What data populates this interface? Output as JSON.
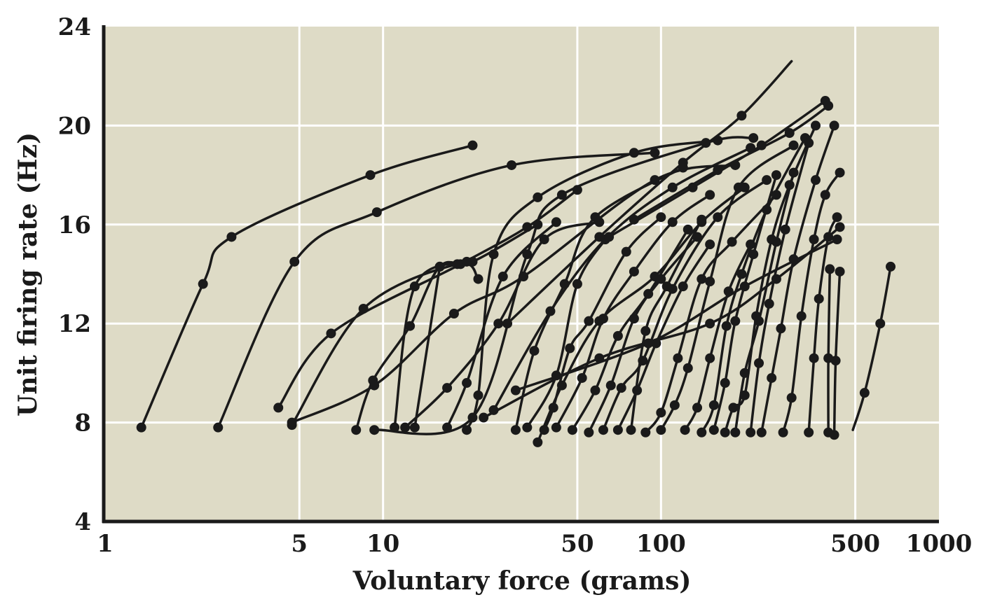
{
  "chart_data": {
    "type": "line",
    "title": "",
    "xlabel": "Voluntary force (grams)",
    "ylabel": "Unit firing rate (Hz)",
    "x_scale": "log",
    "xlim": [
      1,
      1000
    ],
    "ylim": [
      4,
      24
    ],
    "x_ticks": [
      "1",
      "5",
      "10",
      "50",
      "100",
      "500",
      "1000"
    ],
    "y_ticks": [
      "4",
      "8",
      "12",
      "16",
      "20",
      "24"
    ],
    "grid": true,
    "colors": {
      "background": "#dedbc6",
      "grid": "#ffffff",
      "line": "#1a1a1a"
    },
    "series": [
      {
        "points": [
          [
            1.35,
            7.8
          ],
          [
            2.25,
            13.6
          ],
          [
            2.85,
            15.5
          ],
          [
            9,
            18
          ],
          [
            21,
            19.2
          ]
        ]
      },
      {
        "points": [
          [
            2.55,
            7.8
          ],
          [
            4.8,
            14.5
          ],
          [
            9.5,
            16.5
          ],
          [
            29,
            18.4
          ],
          [
            95,
            18.9
          ]
        ]
      },
      {
        "points": [
          [
            4.7,
            7.9
          ],
          [
            8.5,
            12.6
          ],
          [
            18.5,
            14.4
          ],
          [
            22,
            13.8
          ]
        ]
      },
      {
        "points": [
          [
            4.2,
            8.6
          ],
          [
            6.5,
            11.6
          ],
          [
            19,
            14.4
          ],
          [
            33,
            15.9
          ],
          [
            50,
            17.4
          ]
        ]
      },
      {
        "points": [
          [
            4.7,
            8.0
          ],
          [
            9.3,
            9.5
          ],
          [
            18,
            12.4
          ],
          [
            32,
            13.9
          ],
          [
            95,
            17.8
          ],
          [
            185,
            18.4
          ]
        ]
      },
      {
        "points": [
          [
            8,
            7.7
          ],
          [
            9.2,
            9.7
          ],
          [
            12.5,
            11.9
          ],
          [
            16,
            14.3
          ],
          [
            21,
            14.5
          ],
          [
            36,
            16
          ]
        ]
      },
      {
        "points": [
          [
            9.3,
            7.7
          ],
          [
            21,
            8.2
          ],
          [
            33,
            14.8
          ],
          [
            44,
            17.2
          ],
          [
            145,
            19.3
          ],
          [
            215,
            19.5
          ]
        ]
      },
      {
        "points": [
          [
            11,
            7.8
          ],
          [
            13,
            13.5
          ],
          [
            20,
            14.5
          ]
        ]
      },
      {
        "points": [
          [
            12,
            7.8
          ],
          [
            17,
            9.4
          ],
          [
            26,
            12
          ],
          [
            38,
            15.4
          ],
          [
            60,
            16.1
          ]
        ]
      },
      {
        "points": [
          [
            13,
            7.8
          ],
          [
            16,
            14.3
          ]
        ]
      },
      {
        "points": [
          [
            17,
            7.8
          ],
          [
            20,
            9.6
          ],
          [
            27,
            13.9
          ],
          [
            42,
            16.1
          ]
        ]
      },
      {
        "points": [
          [
            20,
            7.7
          ],
          [
            22,
            9.1
          ],
          [
            25,
            14.8
          ],
          [
            36,
            17.1
          ],
          [
            80,
            18.9
          ],
          [
            160,
            19.4
          ]
        ]
      },
      {
        "points": [
          [
            25,
            8.5
          ],
          [
            40,
            12.5
          ],
          [
            63,
            15.4
          ],
          [
            110,
            17.5
          ],
          [
            210,
            19.1
          ]
        ]
      },
      {
        "points": [
          [
            30,
            7.7
          ],
          [
            35,
            10.9
          ],
          [
            45,
            13.6
          ],
          [
            58,
            16.3
          ],
          [
            120,
            18.3
          ]
        ]
      },
      {
        "points": [
          [
            33,
            7.8
          ],
          [
            42,
            9.9
          ],
          [
            50,
            13.6
          ],
          [
            63,
            15.4
          ]
        ]
      },
      {
        "points": [
          [
            38,
            7.7
          ],
          [
            41,
            8.6
          ],
          [
            47,
            11.0
          ],
          [
            55,
            12.1
          ],
          [
            75,
            14.9
          ],
          [
            100,
            16.3
          ]
        ]
      },
      {
        "points": [
          [
            36,
            7.2
          ],
          [
            44,
            9.5
          ],
          [
            60,
            12.1
          ],
          [
            95,
            13.9
          ],
          [
            140,
            16.1
          ],
          [
            200,
            17.5
          ]
        ]
      },
      {
        "points": [
          [
            42,
            7.8
          ],
          [
            52,
            9.8
          ],
          [
            62,
            12.2
          ],
          [
            80,
            14.1
          ],
          [
            110,
            16.1
          ],
          [
            150,
            17.2
          ]
        ]
      },
      {
        "points": [
          [
            48,
            7.7
          ],
          [
            58,
            9.3
          ],
          [
            70,
            11.5
          ],
          [
            90,
            13.2
          ],
          [
            125,
            15.8
          ]
        ]
      },
      {
        "points": [
          [
            55,
            7.6
          ],
          [
            66,
            9.5
          ],
          [
            80,
            12.2
          ],
          [
            100,
            13.8
          ],
          [
            135,
            15.5
          ]
        ]
      },
      {
        "points": [
          [
            62,
            7.7
          ],
          [
            72,
            9.4
          ],
          [
            86,
            10.5
          ],
          [
            110,
            13.4
          ],
          [
            160,
            16.3
          ],
          [
            240,
            17.8
          ]
        ]
      },
      {
        "points": [
          [
            70,
            7.7
          ],
          [
            82,
            9.3
          ],
          [
            96,
            11.2
          ],
          [
            120,
            13.5
          ],
          [
            150,
            15.2
          ]
        ]
      },
      {
        "points": [
          [
            78,
            7.7
          ],
          [
            88,
            11.7
          ],
          [
            105,
            13.5
          ],
          [
            140,
            16.2
          ]
        ]
      },
      {
        "points": [
          [
            88,
            7.6
          ],
          [
            100,
            8.4
          ],
          [
            115,
            10.6
          ],
          [
            140,
            13.8
          ],
          [
            180,
            15.3
          ],
          [
            260,
            17.2
          ]
        ]
      },
      {
        "points": [
          [
            100,
            7.7
          ],
          [
            112,
            8.7
          ],
          [
            125,
            10.2
          ],
          [
            150,
            13.7
          ],
          [
            190,
            17.5
          ],
          [
            300,
            19.2
          ]
        ]
      },
      {
        "points": [
          [
            122,
            7.7
          ],
          [
            135,
            8.6
          ],
          [
            150,
            10.6
          ],
          [
            175,
            13.3
          ],
          [
            210,
            15.2
          ]
        ]
      },
      {
        "points": [
          [
            140,
            7.6
          ],
          [
            155,
            8.7
          ],
          [
            172,
            11.9
          ],
          [
            195,
            14.0
          ],
          [
            240,
            16.6
          ],
          [
            330,
            19.5
          ]
        ]
      },
      {
        "points": [
          [
            155,
            7.7
          ],
          [
            170,
            9.6
          ],
          [
            185,
            12.1
          ],
          [
            215,
            14.8
          ],
          [
            260,
            18.0
          ]
        ]
      },
      {
        "points": [
          [
            170,
            7.6
          ],
          [
            182,
            8.6
          ],
          [
            200,
            9.1
          ],
          [
            220,
            12.3
          ],
          [
            250,
            15.4
          ],
          [
            290,
            17.6
          ],
          [
            360,
            20.0
          ]
        ]
      },
      {
        "points": [
          [
            185,
            7.6
          ],
          [
            200,
            10.0
          ],
          [
            225,
            12.1
          ],
          [
            260,
            15.3
          ],
          [
            300,
            18.1
          ]
        ]
      },
      {
        "points": [
          [
            210,
            7.6
          ],
          [
            225,
            10.4
          ],
          [
            245,
            12.8
          ],
          [
            280,
            15.8
          ],
          [
            340,
            19.3
          ]
        ]
      },
      {
        "points": [
          [
            230,
            7.6
          ],
          [
            250,
            9.8
          ],
          [
            270,
            11.8
          ],
          [
            300,
            14.6
          ],
          [
            360,
            17.8
          ],
          [
            420,
            20.0
          ]
        ]
      },
      {
        "points": [
          [
            275,
            7.6
          ],
          [
            295,
            9.0
          ],
          [
            320,
            12.3
          ],
          [
            355,
            15.4
          ],
          [
            390,
            17.2
          ],
          [
            440,
            18.1
          ]
        ]
      },
      {
        "points": [
          [
            340,
            7.6
          ],
          [
            355,
            10.6
          ],
          [
            370,
            13.0
          ],
          [
            400,
            15.5
          ],
          [
            430,
            16.3
          ]
        ]
      },
      {
        "points": [
          [
            400,
            7.6
          ],
          [
            400,
            10.6
          ],
          [
            405,
            14.2
          ]
        ]
      },
      {
        "points": [
          [
            420,
            7.5
          ],
          [
            425,
            10.5
          ],
          [
            440,
            14.1
          ]
        ]
      },
      {
        "points": [
          [
            490,
            7.7
          ],
          [
            540,
            9.2
          ],
          [
            615,
            12.0
          ],
          [
            670,
            14.3
          ]
        ],
        "unmarked": [
          0
        ]
      },
      {
        "points": [
          [
            23,
            8.2
          ],
          [
            60,
            10.6
          ],
          [
            150,
            12.0
          ],
          [
            260,
            13.8
          ],
          [
            440,
            15.9
          ]
        ]
      },
      {
        "points": [
          [
            30,
            9.3
          ],
          [
            90,
            11.2
          ],
          [
            200,
            13.5
          ],
          [
            430,
            15.4
          ]
        ]
      },
      {
        "points": [
          [
            28,
            12
          ],
          [
            60,
            15.5
          ],
          [
            120,
            18.5
          ],
          [
            195,
            20.4
          ],
          [
            295,
            22.6
          ]
        ],
        "unmarked": [
          4
        ]
      },
      {
        "points": [
          [
            65,
            15.5
          ],
          [
            130,
            17.5
          ],
          [
            230,
            19.2
          ],
          [
            390,
            21.0
          ]
        ]
      },
      {
        "points": [
          [
            80,
            16.2
          ],
          [
            160,
            18.2
          ],
          [
            290,
            19.7
          ],
          [
            400,
            20.8
          ]
        ]
      }
    ]
  }
}
